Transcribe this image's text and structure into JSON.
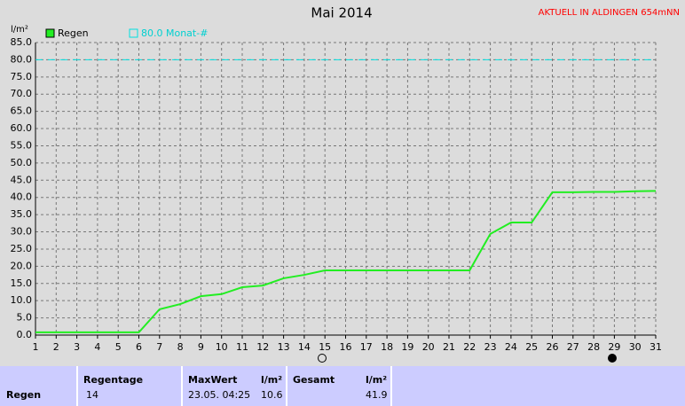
{
  "chart_data": {
    "type": "line",
    "title": "Mai 2014",
    "corner_label": "AKTUELL IN ALDINGEN 654mNN",
    "y_label": "l/m²",
    "x": [
      1,
      2,
      3,
      4,
      5,
      6,
      7,
      8,
      9,
      10,
      11,
      12,
      13,
      14,
      15,
      16,
      17,
      18,
      19,
      20,
      21,
      22,
      23,
      24,
      25,
      26,
      27,
      28,
      29,
      30,
      31
    ],
    "xlim": [
      1,
      31
    ],
    "xticks": [
      1,
      2,
      3,
      4,
      5,
      6,
      7,
      8,
      9,
      10,
      11,
      12,
      13,
      14,
      15,
      16,
      17,
      18,
      19,
      20,
      21,
      22,
      23,
      24,
      25,
      26,
      27,
      28,
      29,
      30,
      31
    ],
    "series": [
      {
        "name": "Regen",
        "color": "#22ee22",
        "values": [
          0.8,
          0.8,
          0.8,
          0.8,
          0.8,
          0.8,
          7.5,
          9.0,
          11.3,
          11.9,
          13.9,
          14.4,
          16.5,
          17.5,
          18.8,
          18.8,
          18.8,
          18.8,
          18.8,
          18.8,
          18.8,
          18.8,
          29.4,
          32.7,
          32.7,
          41.5,
          41.5,
          41.6,
          41.6,
          41.8,
          41.9
        ]
      }
    ],
    "reference": {
      "name": "80.0 Monat-#",
      "value": 80,
      "color": "#00e0e0"
    },
    "ylim": [
      0,
      85
    ],
    "yticks": [
      {
        "value": 0,
        "label": "0.0"
      },
      {
        "value": 5,
        "label": "5.0"
      },
      {
        "value": 10,
        "label": "10.0"
      },
      {
        "value": 15,
        "label": "15.0"
      },
      {
        "value": 20,
        "label": "20.0"
      },
      {
        "value": 25,
        "label": "25.0"
      },
      {
        "value": 30,
        "label": "30.0"
      },
      {
        "value": 35,
        "label": "35.0"
      },
      {
        "value": 40,
        "label": "40.0"
      },
      {
        "value": 45,
        "label": "45.0"
      },
      {
        "value": 50,
        "label": "50.0"
      },
      {
        "value": 55,
        "label": "55.0"
      },
      {
        "value": 60,
        "label": "60.0"
      },
      {
        "value": 65,
        "label": "65.0"
      },
      {
        "value": 70,
        "label": "70.0"
      },
      {
        "value": 75,
        "label": "75.0"
      },
      {
        "value": 80,
        "label": "80.0"
      },
      {
        "value": 85,
        "label": "85.0"
      }
    ],
    "grid": true
  },
  "table": {
    "headers": [
      "Regentage",
      "MaxWert",
      "l/m²",
      "Gesamt",
      "l/m²"
    ],
    "row": {
      "label": "Regen",
      "regentage": 14,
      "maxwert_time": "23.05. 04:25",
      "maxwert": 10.6,
      "gesamt": 41.9
    }
  }
}
